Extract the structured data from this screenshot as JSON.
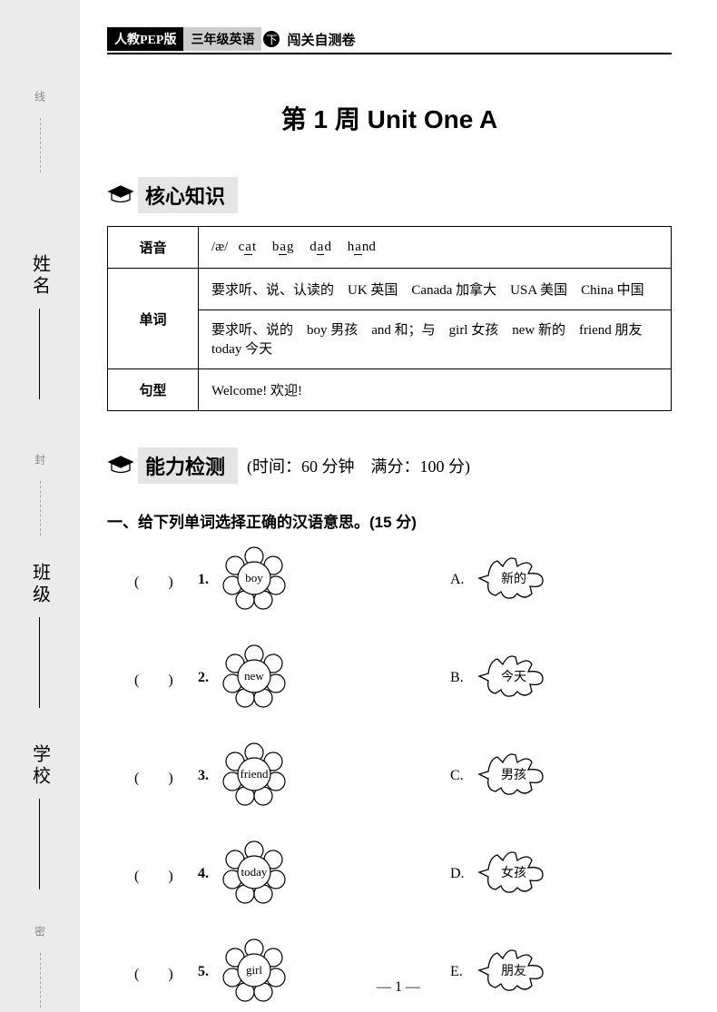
{
  "binding": {
    "labels": [
      "学校",
      "班级",
      "姓名"
    ],
    "small_labels": [
      "密",
      "封",
      "线"
    ]
  },
  "header": {
    "black_label": "人教PEP版",
    "gray_label": "三年级英语",
    "circle": "下",
    "rest": "闯关自测卷"
  },
  "title": "第 1 周  Unit One A",
  "section1": {
    "title": "核心知识"
  },
  "table": {
    "row1_label": "语音",
    "row1_prefix": "/æ/",
    "row1_words": [
      "cat",
      "bag",
      "dad",
      "hand"
    ],
    "row2_label": "单词",
    "row2a": "要求听、说、认读的　UK 英国　Canada 加拿大　USA 美国　China 中国",
    "row2b": "要求听、说的　boy 男孩　and 和；与　girl 女孩　new 新的　friend 朋友　today 今天",
    "row3_label": "句型",
    "row3_content": "Welcome! 欢迎!"
  },
  "section2": {
    "title": "能力检测",
    "subtitle": "(时间：60 分钟　满分：100 分)"
  },
  "q1": {
    "title": "一、给下列单词选择正确的汉语意思。(15 分)",
    "left": [
      {
        "num": "1.",
        "word": "boy"
      },
      {
        "num": "2.",
        "word": "new"
      },
      {
        "num": "3.",
        "word": "friend"
      },
      {
        "num": "4.",
        "word": "today"
      },
      {
        "num": "5.",
        "word": "girl"
      }
    ],
    "right": [
      {
        "letter": "A.",
        "word": "新的"
      },
      {
        "letter": "B.",
        "word": "今天"
      },
      {
        "letter": "C.",
        "word": "男孩"
      },
      {
        "letter": "D.",
        "word": "女孩"
      },
      {
        "letter": "E.",
        "word": "朋友"
      }
    ]
  },
  "page_number": "— 1 —"
}
